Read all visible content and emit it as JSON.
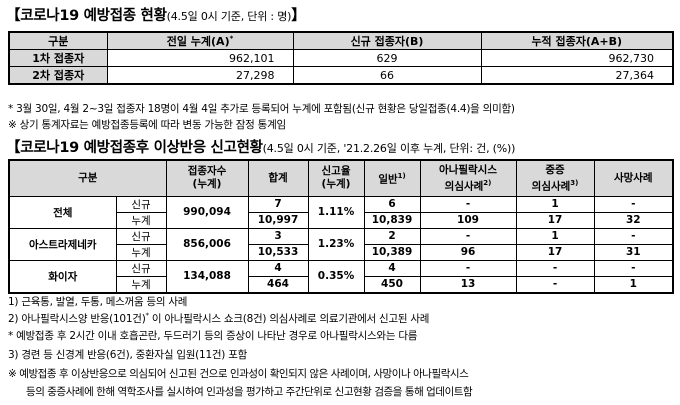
{
  "section1": {
    "title": "【코로나19 예방접종 현황",
    "sub": "(4.5일 0시 기준, 단위 : 명)",
    "close": "】",
    "headers": [
      "구분",
      "전일 누계(A)",
      "신규 접종자(B)",
      "누적 접종자(A+B)"
    ],
    "header_sup": "*",
    "rows": [
      {
        "label": "1차 접종자",
        "a": "962,101",
        "b": "629",
        "c": "962,730"
      },
      {
        "label": "2차 접종자",
        "a": "27,298",
        "b": "66",
        "c": "27,364"
      }
    ],
    "note1": "* 3월 30일, 4월 2~3일 접종자 18명이 4월 4일 추가로 등록되어 누계에 포함됨(신규 현황은 당일접종(4.4)을 의미함)",
    "note2": "※ 상기 통계자료는 예방접종등록에 따라 변동 가능한 잠정 통계임"
  },
  "section2": {
    "title": "【코로나19 예방접종후 이상반응 신고현황",
    "sub": "(4.5일 0시 기준, '21.2.26일 이후 누계, 단위: 건, (%))",
    "headers": {
      "gubun": "구분",
      "count_l1": "접종자수",
      "count_l2": "(누계)",
      "total": "합계",
      "rate_l1": "신고율",
      "rate_l2": "(누계)",
      "general": "일반",
      "general_sup": "1)",
      "ana_l1": "아나필락시스",
      "ana_l2": "의심사례",
      "ana_sup": "2)",
      "severe_l1": "중증",
      "severe_l2": "의심사례",
      "severe_sup": "3)",
      "death": "사망사례"
    },
    "groups": [
      {
        "name": "전체",
        "count": "990,094",
        "rate": "1.11%",
        "new": {
          "kind": "신규",
          "total": "7",
          "general": "6",
          "ana": "-",
          "severe": "1",
          "death": "-"
        },
        "cum": {
          "kind": "누계",
          "total": "10,997",
          "general": "10,839",
          "ana": "109",
          "severe": "17",
          "death": "32"
        }
      },
      {
        "name": "아스트라제네카",
        "count": "856,006",
        "rate": "1.23%",
        "new": {
          "kind": "신규",
          "total": "3",
          "general": "2",
          "ana": "-",
          "severe": "1",
          "death": "-"
        },
        "cum": {
          "kind": "누계",
          "total": "10,533",
          "general": "10,389",
          "ana": "96",
          "severe": "17",
          "death": "31"
        }
      },
      {
        "name": "화이자",
        "count": "134,088",
        "rate": "0.35%",
        "new": {
          "kind": "신규",
          "total": "4",
          "general": "4",
          "ana": "-",
          "severe": "-",
          "death": "-"
        },
        "cum": {
          "kind": "누계",
          "total": "464",
          "general": "450",
          "ana": "13",
          "severe": "-",
          "death": "1"
        }
      }
    ],
    "notes": [
      "1) 근육통, 발열, 두통, 메스꺼움 등의 사례",
      "2) 아나필락시스양 반응(101건)",
      "* 예방접종 후 2시간 이내 호흡곤란, 두드러기 등의 증상이 나타난 경우로 아나필락시스와는 다름",
      "3) 경련 등 신경계 반응(6건), 중환자실 입원(11건) 포함",
      "※ 예방접종 후 이상반응으로 의심되어 신고된 건으로 인과성이 확인되지 않은 사례이며, 사망이나 아나필락시스",
      "등의 중증사례에 한해 역학조사를 실시하여 인과성을 평가하고 주간단위로 신고현황 검증을 통해 업데이트함"
    ],
    "note2_sup": "*",
    "note2_tail": " 이 아나필락시스 쇼크(8건) 의심사례로 의료기관에서 신고된 사례"
  }
}
